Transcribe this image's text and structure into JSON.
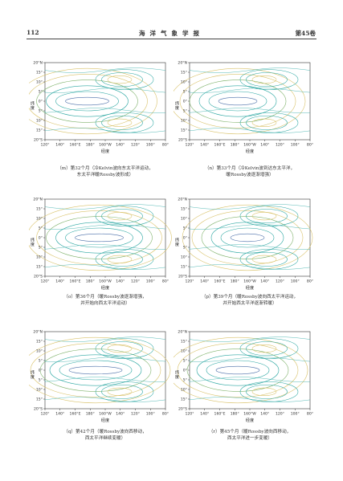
{
  "header": {
    "page": "112",
    "title": "海洋气象学报",
    "volume": "第45卷"
  },
  "axes": {
    "y_label": "纬度",
    "x_label": "经度",
    "y_ticks": [
      "20°N",
      "15°",
      "10°",
      "5°",
      "0°",
      "5°",
      "10°",
      "15°",
      "20°S"
    ],
    "x_ticks": [
      "120°",
      "140°",
      "160°E",
      "180°",
      "160°W",
      "140°",
      "120°",
      "100°",
      "80°"
    ]
  },
  "colors": {
    "neg": "#2ca7a2",
    "pos": "#d9c26a",
    "zero": "#4a6ea8",
    "mid": "#7fb26b"
  },
  "panels": [
    {
      "id": "m",
      "caption_lines": [
        "（m）第32个月（冷Kelvin波向东太平洋运动，",
        "东太平洋暖Rossby波形成）"
      ]
    },
    {
      "id": "n",
      "caption_lines": [
        "（n）第33个月（冷Kelvin波到达东太平洋，",
        "暖Rossby波逐渐增强）"
      ]
    },
    {
      "id": "o",
      "caption_lines": [
        "（o）第36个月（暖Rossby波逐渐增强，",
        "并开始向西太平洋运动）"
      ]
    },
    {
      "id": "p",
      "caption_lines": [
        "（p）第39个月（暖Rossby波向西太平洋运动，",
        "并开始西太平洋逐渐转暖）"
      ]
    },
    {
      "id": "q",
      "caption_lines": [
        "（q）第42个月（暖Rossby波向西移动，",
        "西太平洋继续变暖）"
      ]
    },
    {
      "id": "r",
      "caption_lines": [
        "（r）第45个月（暖Rossby波向西移动，",
        "西太平洋进一步变暖）"
      ]
    }
  ]
}
